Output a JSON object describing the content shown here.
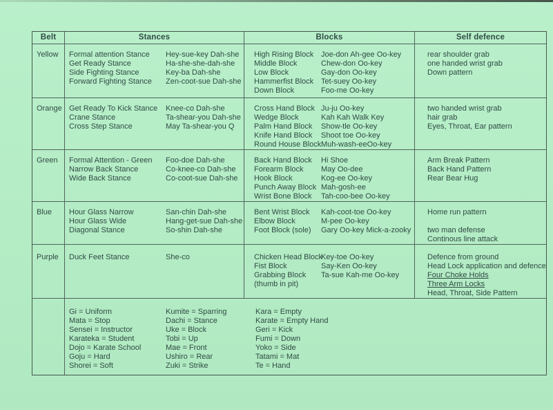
{
  "page": {
    "paper_color": "#b4ecc5",
    "ink_color": "#2f4b44"
  },
  "table": {
    "headers": {
      "belt": "Belt",
      "stances": "Stances",
      "blocks": "Blocks",
      "self_defence": "Self defence"
    },
    "rows": [
      {
        "belt": "Yellow",
        "stances": [
          [
            "Formal attention Stance",
            "Hey-sue-key Dah-she"
          ],
          [
            "Get Ready Stance",
            "Ha-she-she-dah-she"
          ],
          [
            "Side Fighting Stance",
            "Key-ba Dah-she"
          ],
          [
            "Forward Fighting Stance",
            "Zen-coot-sue Dah-she"
          ]
        ],
        "blocks": [
          [
            "High Rising Block",
            "Joe-don Ah-gee Oo-key"
          ],
          [
            "Middle Block",
            "Chew-don Oo-key"
          ],
          [
            "Low Block",
            "Gay-don Oo-key"
          ],
          [
            "Hammerfist Block",
            "Tet-suey Oo-key"
          ],
          [
            "Down Block",
            "Foo-me Oo-key"
          ]
        ],
        "self_defence": [
          "rear shoulder grab",
          "one handed wrist grab",
          "Down pattern"
        ]
      },
      {
        "belt": "Orange",
        "stances": [
          [
            "Get Ready To Kick Stance",
            "Knee-co Dah-she"
          ],
          [
            "Crane Stance",
            "Ta-shear-you Dah-she"
          ],
          [
            "Cross Step Stance",
            "May Ta-shear-you Q"
          ]
        ],
        "blocks": [
          [
            "Cross Hand Block",
            "Ju-ju Oo-key"
          ],
          [
            "Wedge Block",
            "Kah Kah Walk Key"
          ],
          [
            "Palm Hand Block",
            "Show-tle Oo-key"
          ],
          [
            "Knife Hand Block",
            "Shoot toe Oo-key"
          ],
          [
            "Round House Block",
            "Muh-wash-eeOo-key"
          ]
        ],
        "self_defence": [
          "two handed wrist grab",
          "hair grab",
          "Eyes, Throat, Ear pattern"
        ]
      },
      {
        "belt": "Green",
        "stances": [
          [
            "Formal Attention - Green",
            "Foo-doe Dah-she"
          ],
          [
            "Narrow Back Stance",
            "Co-knee-co Dah-she"
          ],
          [
            "Wide Back Stance",
            "Co-coot-sue Dah-she"
          ]
        ],
        "blocks": [
          [
            "Back Hand Block",
            "Hi Shoe"
          ],
          [
            "Forearm Block",
            "May Oo-dee"
          ],
          [
            "Hook Block",
            "Kog-ee Oo-key"
          ],
          [
            "Punch Away Block",
            "Mah-gosh-ee"
          ],
          [
            "Wrist Bone Block",
            "Tah-coo-bee Oo-key"
          ]
        ],
        "self_defence": [
          "Arm Break Pattern",
          "Back Hand Pattern",
          "Rear Bear Hug"
        ]
      },
      {
        "belt": "Blue",
        "stances": [
          [
            "Hour Glass Narrow",
            "San-chin Dah-she"
          ],
          [
            "Hour Glass Wide",
            "Hang-get-sue Dah-she"
          ],
          [
            "Diagonal Stance",
            "So-shin Dah-she"
          ]
        ],
        "blocks": [
          [
            "Bent Wrist Block",
            "Kah-coot-toe Oo-key"
          ],
          [
            "Elbow Block",
            "M-pee Oo-key"
          ],
          [
            "Foot Block (sole)",
            "Gary Oo-key Mick-a-zooky"
          ]
        ],
        "self_defence": [
          "Home run pattern",
          "",
          "two man defense",
          "Continous line attack"
        ]
      },
      {
        "belt": "Purple",
        "stances": [
          [
            "Duck Feet Stance",
            "She-co"
          ]
        ],
        "blocks": [
          [
            "Chicken Head Block",
            "Key-toe Oo-key"
          ],
          [
            "Fist Block",
            "Say-Ken Oo-key"
          ],
          [
            "Grabbing Block",
            "Ta-sue Kah-me Oo-key"
          ],
          [
            "(thumb in pit)",
            ""
          ]
        ],
        "self_defence": [
          "Defence from ground",
          "Head Lock application and defence",
          "Four Choke Holds",
          "Three Arm Locks",
          "Head, Throat, Side Pattern"
        ]
      }
    ],
    "glossary": {
      "col1": [
        "Gi = Uniform",
        "Mata = Stop",
        "Sensei = Instructor",
        "Karateka = Student",
        "Dojo = Karate School",
        "Goju = Hard",
        "Shorei = Soft"
      ],
      "col2": [
        "Kumite = Sparring",
        "Dachi = Stance",
        "Uke = Block",
        "Tobi = Up",
        "Mae = Front",
        "Ushiro = Rear",
        "Zuki = Strike"
      ],
      "col3": [
        "Kara = Empty",
        "Karate = Empty Hand",
        "Geri = Kick",
        "Fumi = Down",
        "Yoko = Side",
        "Tatami = Mat",
        "Te = Hand"
      ]
    }
  }
}
